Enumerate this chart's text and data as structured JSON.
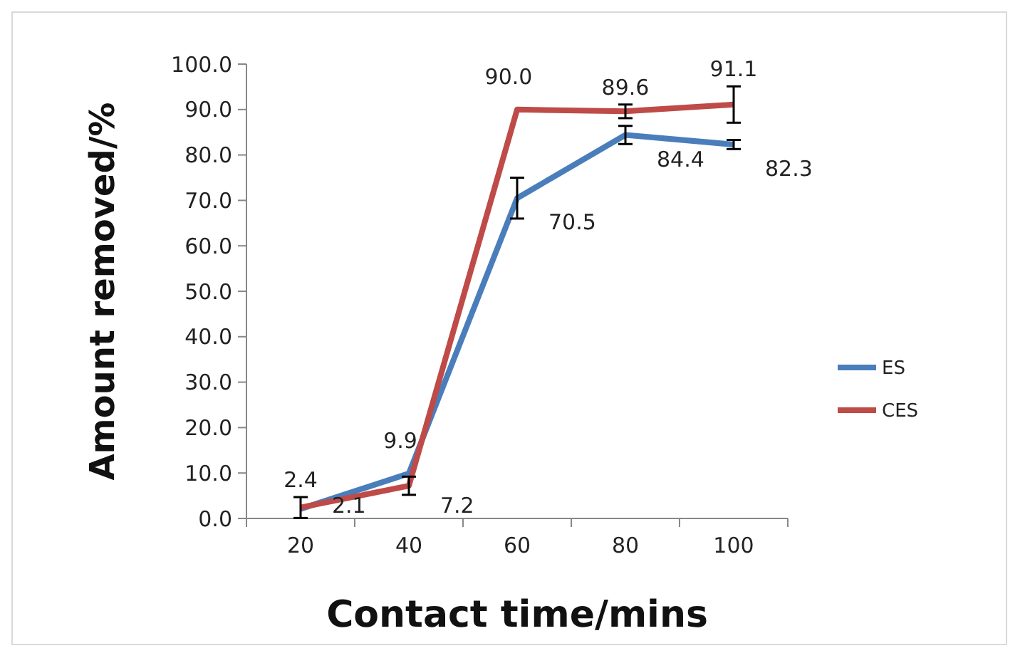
{
  "chart_data": {
    "type": "line",
    "xlabel": "Contact time/mins",
    "ylabel": "Amount removed/%",
    "categories": [
      "20",
      "40",
      "60",
      "80",
      "100"
    ],
    "series": [
      {
        "name": "ES",
        "color": "#4a7ebb",
        "values": [
          2.1,
          9.9,
          70.5,
          84.4,
          82.3
        ],
        "value_labels": [
          "2.1",
          "9.9",
          "70.5",
          "84.4",
          "82.3"
        ],
        "errors": [
          null,
          null,
          4.5,
          2,
          1
        ]
      },
      {
        "name": "CES",
        "color": "#be4b48",
        "values": [
          2.4,
          7.2,
          90.0,
          89.6,
          91.1
        ],
        "value_labels": [
          "2.4",
          "7.2",
          "90.0",
          "89.6",
          "91.1"
        ],
        "errors": [
          2.3,
          2,
          null,
          1.5,
          4
        ]
      }
    ],
    "ylim": [
      0,
      100
    ],
    "yticks": [
      {
        "value": 0,
        "label": "0.0"
      },
      {
        "value": 10,
        "label": "10.0"
      },
      {
        "value": 20,
        "label": "20.0"
      },
      {
        "value": 30,
        "label": "30.0"
      },
      {
        "value": 40,
        "label": "40.0"
      },
      {
        "value": 50,
        "label": "50.0"
      },
      {
        "value": 60,
        "label": "60.0"
      },
      {
        "value": 70,
        "label": "70.0"
      },
      {
        "value": 80,
        "label": "80.0"
      },
      {
        "value": 90,
        "label": "90.0"
      },
      {
        "value": 100,
        "label": "100.0"
      }
    ],
    "legend": "right",
    "marker": "none",
    "line_style": "solid",
    "grid": false
  }
}
